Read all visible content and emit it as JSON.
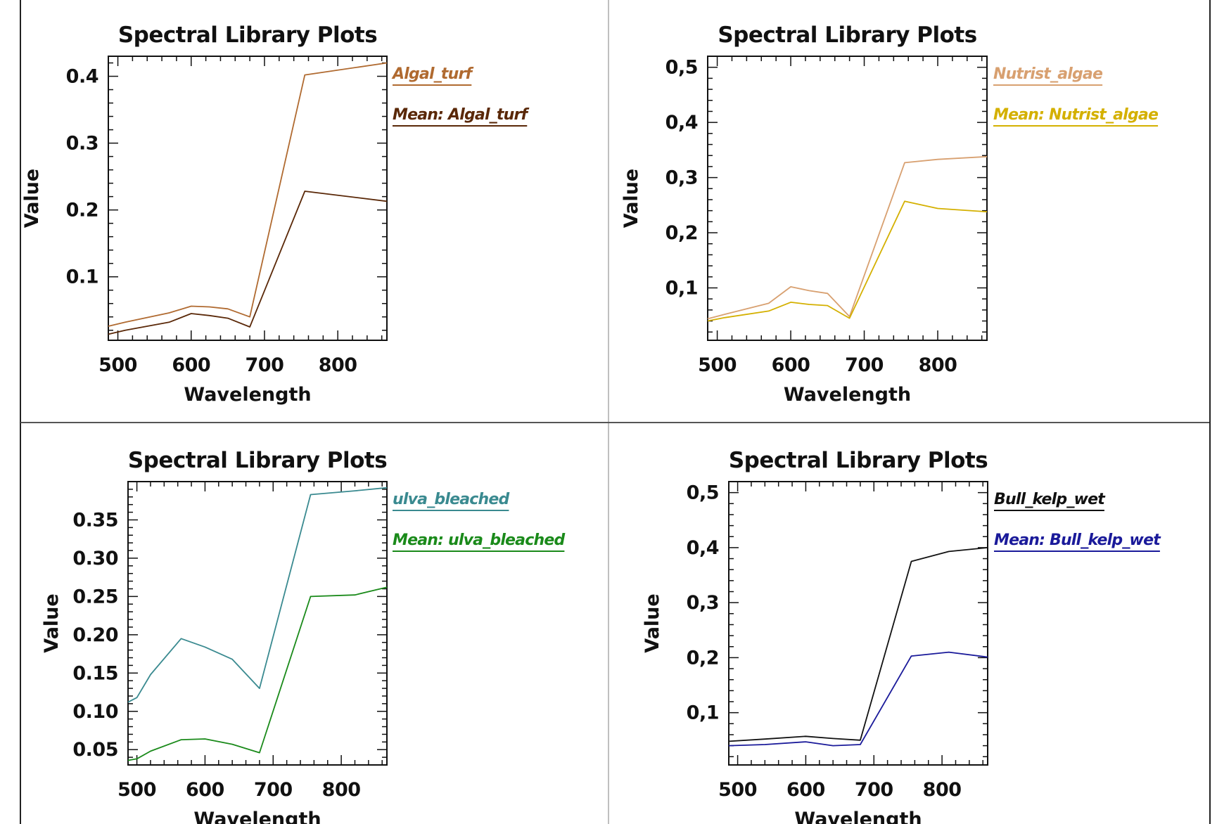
{
  "chart_data": [
    {
      "type": "line",
      "title": "Spectral Library Plots",
      "xlabel": "Wavelength",
      "ylabel": "Value",
      "xlim": [
        487,
        867
      ],
      "ylim": [
        0.005,
        0.43
      ],
      "xticks": [
        500,
        600,
        700,
        800
      ],
      "yticks": [
        0.1,
        0.2,
        0.3,
        0.4
      ],
      "ytick_labels": [
        "0.1",
        "0.2",
        "0.3",
        "0.4"
      ],
      "legend": "right",
      "series": [
        {
          "name": "Algal_turf",
          "color": "#b06a30",
          "x": [
            487,
            510,
            570,
            600,
            625,
            650,
            680,
            755,
            867
          ],
          "y": [
            0.026,
            0.032,
            0.046,
            0.056,
            0.055,
            0.052,
            0.04,
            0.402,
            0.42
          ]
        },
        {
          "name": "Mean: Algal_turf",
          "color": "#5a2808",
          "x": [
            487,
            510,
            570,
            600,
            625,
            650,
            680,
            755,
            867
          ],
          "y": [
            0.014,
            0.02,
            0.032,
            0.045,
            0.042,
            0.038,
            0.025,
            0.228,
            0.213
          ]
        }
      ]
    },
    {
      "type": "line",
      "title": "Spectral Library Plots",
      "xlabel": "Wavelength",
      "ylabel": "Value",
      "xlim": [
        487,
        867
      ],
      "ylim": [
        0.005,
        0.52
      ],
      "xticks": [
        500,
        600,
        700,
        800
      ],
      "yticks": [
        0.1,
        0.2,
        0.3,
        0.4,
        0.5
      ],
      "ytick_labels": [
        "0,1",
        "0,2",
        "0,3",
        "0,4",
        "0,5"
      ],
      "legend": "right",
      "series": [
        {
          "name": "Nutrist_algae",
          "color": "#d8a070",
          "x": [
            487,
            510,
            570,
            600,
            625,
            650,
            680,
            755,
            800,
            867
          ],
          "y": [
            0.044,
            0.052,
            0.072,
            0.102,
            0.095,
            0.09,
            0.048,
            0.327,
            0.333,
            0.338
          ]
        },
        {
          "name": "Mean: Nutrist_algae",
          "color": "#d4b000",
          "x": [
            487,
            510,
            570,
            600,
            625,
            650,
            680,
            755,
            800,
            867
          ],
          "y": [
            0.04,
            0.046,
            0.058,
            0.074,
            0.07,
            0.068,
            0.045,
            0.257,
            0.244,
            0.238
          ]
        }
      ]
    },
    {
      "type": "line",
      "title": "Spectral Library Plots",
      "xlabel": "Wavelength",
      "ylabel": "Value",
      "xlim": [
        487,
        867
      ],
      "ylim": [
        0.03,
        0.4
      ],
      "xticks": [
        500,
        600,
        700,
        800
      ],
      "yticks": [
        0.05,
        0.1,
        0.15,
        0.2,
        0.25,
        0.3,
        0.35
      ],
      "ytick_labels": [
        "0.05",
        "0.10",
        "0.15",
        "0.20",
        "0.25",
        "0.30",
        "0.35"
      ],
      "legend": "right",
      "series": [
        {
          "name": "ulva_bleached",
          "color": "#3a8a90",
          "x": [
            487,
            500,
            520,
            565,
            600,
            640,
            680,
            755,
            820,
            867
          ],
          "y": [
            0.112,
            0.118,
            0.148,
            0.195,
            0.184,
            0.168,
            0.13,
            0.383,
            0.388,
            0.392
          ]
        },
        {
          "name": "Mean: ulva_bleached",
          "color": "#1a8a1a",
          "x": [
            487,
            500,
            520,
            565,
            600,
            640,
            680,
            755,
            820,
            867
          ],
          "y": [
            0.036,
            0.038,
            0.048,
            0.063,
            0.064,
            0.057,
            0.046,
            0.25,
            0.252,
            0.262
          ]
        }
      ]
    },
    {
      "type": "line",
      "title": "Spectral Library Plots",
      "xlabel": "Wavelength",
      "ylabel": "Value",
      "xlim": [
        487,
        867
      ],
      "ylim": [
        0.005,
        0.52
      ],
      "xticks": [
        500,
        600,
        700,
        800
      ],
      "yticks": [
        0.1,
        0.2,
        0.3,
        0.4,
        0.5
      ],
      "ytick_labels": [
        "0,1",
        "0,2",
        "0,3",
        "0,4",
        "0,5"
      ],
      "legend": "right",
      "series": [
        {
          "name": "Bull_kelp_wet",
          "color": "#111111",
          "x": [
            487,
            540,
            600,
            640,
            680,
            755,
            810,
            867
          ],
          "y": [
            0.048,
            0.052,
            0.057,
            0.053,
            0.05,
            0.375,
            0.393,
            0.4
          ]
        },
        {
          "name": "Mean: Bull_kelp_wet",
          "color": "#1a1a9a",
          "x": [
            487,
            540,
            600,
            640,
            680,
            755,
            810,
            867
          ],
          "y": [
            0.04,
            0.042,
            0.047,
            0.04,
            0.042,
            0.203,
            0.21,
            0.201
          ]
        }
      ]
    }
  ]
}
